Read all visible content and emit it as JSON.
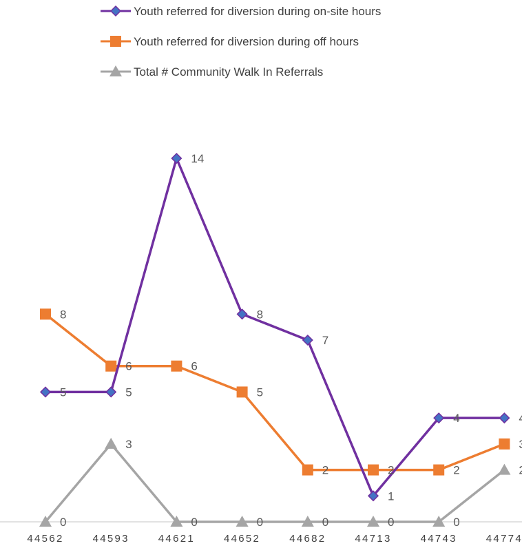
{
  "chart_data": {
    "type": "line",
    "categories": [
      "44562",
      "44593",
      "44621",
      "44652",
      "44682",
      "44713",
      "44743",
      "44774"
    ],
    "series": [
      {
        "name": "Youth referred for diversion during on-site hours",
        "values": [
          5,
          5,
          14,
          8,
          7,
          1,
          4,
          4
        ],
        "color": "#7030A0",
        "marker_color": "#4472C4",
        "marker": "diamond"
      },
      {
        "name": "Youth referred for diversion during off hours",
        "values": [
          8,
          6,
          6,
          5,
          2,
          2,
          2,
          3
        ],
        "color": "#ED7D31",
        "marker_color": "#ED7D31",
        "marker": "square"
      },
      {
        "name": "Total # Community Walk In Referrals",
        "values": [
          0,
          3,
          0,
          0,
          0,
          0,
          0,
          2
        ],
        "color": "#A5A5A5",
        "marker_color": "#A5A5A5",
        "marker": "triangle"
      }
    ],
    "ylim": [
      0,
      14
    ],
    "grid": false,
    "legend_position": "top",
    "data_labels": true,
    "axis_color": "#D9D9D9"
  }
}
